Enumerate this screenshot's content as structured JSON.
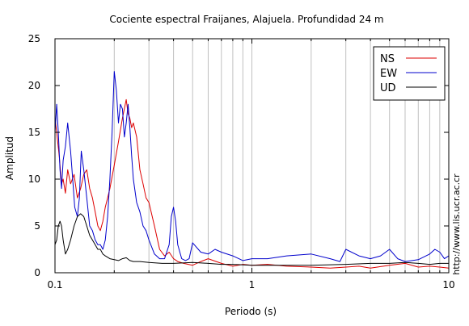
{
  "chart_data": {
    "type": "line",
    "title": "Cociente espectral Fraijanes, Alajuela. Profundidad 24 m",
    "xlabel": "Periodo (s)",
    "ylabel": "Amplitud",
    "xscale": "log",
    "xlim": [
      0.1,
      10
    ],
    "ylim": [
      0,
      25
    ],
    "x_ticks": [
      0.1,
      1,
      10
    ],
    "x_tick_labels": [
      "0.1",
      "1",
      "10"
    ],
    "y_ticks": [
      0,
      5,
      10,
      15,
      20,
      25
    ],
    "y_tick_labels": [
      "0",
      "5",
      "10",
      "15",
      "20",
      "25"
    ],
    "grid": true,
    "legend_position": "top-right",
    "watermark": "http://www.lis.ucr.ac.cr",
    "series": [
      {
        "name": "NS",
        "color": "#dd0000",
        "x": [
          0.1,
          0.102,
          0.105,
          0.108,
          0.11,
          0.113,
          0.116,
          0.12,
          0.125,
          0.13,
          0.135,
          0.14,
          0.145,
          0.15,
          0.155,
          0.16,
          0.165,
          0.17,
          0.175,
          0.18,
          0.185,
          0.19,
          0.2,
          0.21,
          0.22,
          0.23,
          0.235,
          0.24,
          0.245,
          0.25,
          0.26,
          0.27,
          0.28,
          0.29,
          0.3,
          0.32,
          0.34,
          0.36,
          0.38,
          0.4,
          0.42,
          0.45,
          0.5,
          0.55,
          0.6,
          0.7,
          0.8,
          0.9,
          1.0,
          1.2,
          1.5,
          2.0,
          2.5,
          3.0,
          3.5,
          4.0,
          5.0,
          6.0,
          7.0,
          8.0,
          9.0,
          10.0
        ],
        "y": [
          16.5,
          15.0,
          12.5,
          9.5,
          10.0,
          8.5,
          11.0,
          9.5,
          10.5,
          8.0,
          9.0,
          10.5,
          11.0,
          9.0,
          8.0,
          6.5,
          5.0,
          4.5,
          5.5,
          7.0,
          8.0,
          9.0,
          11.5,
          14.0,
          16.5,
          18.5,
          17.0,
          16.5,
          15.5,
          16.0,
          14.5,
          11.0,
          9.5,
          8.0,
          7.5,
          5.0,
          2.5,
          1.8,
          2.2,
          1.5,
          1.2,
          1.0,
          0.8,
          1.2,
          1.5,
          1.0,
          0.7,
          0.9,
          0.8,
          0.9,
          0.7,
          0.6,
          0.5,
          0.6,
          0.7,
          0.5,
          0.8,
          1.0,
          0.6,
          0.7,
          0.6,
          0.5
        ]
      },
      {
        "name": "EW",
        "color": "#0000cc",
        "x": [
          0.1,
          0.102,
          0.104,
          0.106,
          0.108,
          0.11,
          0.113,
          0.116,
          0.12,
          0.123,
          0.126,
          0.13,
          0.133,
          0.136,
          0.14,
          0.145,
          0.15,
          0.155,
          0.16,
          0.165,
          0.17,
          0.175,
          0.18,
          0.185,
          0.19,
          0.195,
          0.2,
          0.205,
          0.21,
          0.215,
          0.22,
          0.225,
          0.23,
          0.235,
          0.24,
          0.245,
          0.25,
          0.26,
          0.27,
          0.28,
          0.29,
          0.3,
          0.32,
          0.34,
          0.36,
          0.38,
          0.39,
          0.4,
          0.41,
          0.42,
          0.44,
          0.46,
          0.48,
          0.5,
          0.55,
          0.6,
          0.65,
          0.7,
          0.8,
          0.9,
          1.0,
          1.2,
          1.5,
          2.0,
          2.5,
          2.8,
          3.0,
          3.5,
          4.0,
          4.5,
          5.0,
          5.5,
          6.0,
          7.0,
          8.0,
          8.5,
          9.0,
          9.5,
          10.0
        ],
        "y": [
          15.0,
          18.0,
          15.0,
          11.0,
          9.0,
          12.0,
          13.5,
          16.0,
          13.0,
          10.0,
          7.0,
          6.0,
          8.0,
          13.0,
          11.0,
          8.0,
          5.0,
          4.5,
          3.5,
          3.0,
          3.0,
          2.5,
          3.5,
          6.0,
          10.0,
          15.0,
          21.5,
          19.5,
          16.0,
          18.0,
          17.5,
          14.5,
          16.0,
          18.0,
          15.5,
          12.5,
          10.0,
          7.5,
          6.5,
          5.0,
          4.5,
          3.5,
          2.0,
          1.5,
          1.5,
          3.0,
          6.0,
          7.0,
          5.5,
          3.0,
          1.5,
          1.3,
          1.5,
          3.2,
          2.2,
          2.0,
          2.5,
          2.2,
          1.8,
          1.3,
          1.5,
          1.5,
          1.8,
          2.0,
          1.5,
          1.2,
          2.5,
          1.8,
          1.5,
          1.8,
          2.5,
          1.5,
          1.2,
          1.4,
          2.0,
          2.5,
          2.2,
          1.5,
          1.8
        ]
      },
      {
        "name": "UD",
        "color": "#000000",
        "x": [
          0.1,
          0.102,
          0.104,
          0.106,
          0.108,
          0.11,
          0.113,
          0.116,
          0.12,
          0.125,
          0.13,
          0.135,
          0.14,
          0.145,
          0.15,
          0.155,
          0.16,
          0.165,
          0.17,
          0.175,
          0.18,
          0.19,
          0.2,
          0.21,
          0.22,
          0.23,
          0.24,
          0.25,
          0.27,
          0.3,
          0.35,
          0.4,
          0.5,
          0.6,
          0.7,
          0.8,
          1.0,
          1.5,
          2.0,
          3.0,
          4.0,
          5.0,
          6.0,
          7.0,
          8.0,
          9.0,
          10.0
        ],
        "y": [
          3.0,
          3.5,
          5.0,
          5.5,
          5.0,
          3.5,
          2.0,
          2.5,
          3.5,
          5.0,
          6.0,
          6.3,
          6.0,
          5.0,
          4.0,
          3.5,
          3.0,
          2.5,
          2.5,
          2.0,
          1.8,
          1.5,
          1.4,
          1.3,
          1.5,
          1.6,
          1.3,
          1.2,
          1.2,
          1.1,
          1.0,
          1.0,
          1.1,
          1.0,
          0.9,
          0.9,
          0.8,
          0.8,
          0.8,
          0.9,
          1.0,
          1.0,
          1.1,
          1.0,
          0.9,
          1.0,
          1.0
        ]
      }
    ]
  }
}
